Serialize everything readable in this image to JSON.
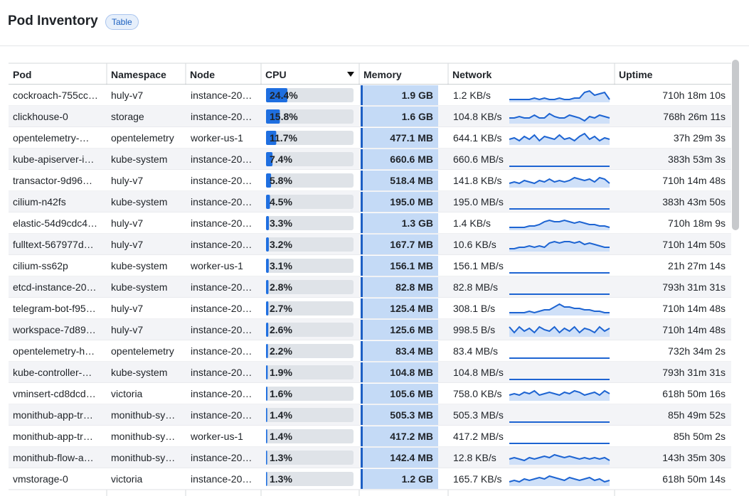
{
  "header": {
    "title": "Pod Inventory",
    "badge": "Table"
  },
  "table": {
    "columns": [
      "Pod",
      "Namespace",
      "Node",
      "CPU",
      "Memory",
      "Network",
      "Uptime"
    ],
    "rows": [
      {
        "pod": "cockroach-755cc…",
        "namespace": "huly-v7",
        "node": "instance-20…",
        "cpu": {
          "value": 24.4,
          "label": "24.4%"
        },
        "memory": "1.9 GB",
        "network": "1.2 KB/s",
        "uptime": "710h 18m 10s",
        "history": [
          2,
          2,
          2,
          2,
          2,
          3,
          2,
          3,
          2,
          2,
          3,
          2,
          2,
          3,
          3,
          7,
          8,
          5,
          6,
          7,
          2
        ]
      },
      {
        "pod": "clickhouse-0",
        "namespace": "storage",
        "node": "instance-20…",
        "cpu": {
          "value": 15.8,
          "label": "15.8%"
        },
        "memory": "1.6 GB",
        "network": "104.8 KB/s",
        "uptime": "768h 26m 11s",
        "history": [
          4,
          4,
          5,
          4,
          4,
          6,
          4,
          4,
          7,
          5,
          4,
          4,
          6,
          5,
          4,
          2,
          5,
          4,
          6,
          5,
          4
        ]
      },
      {
        "pod": "opentelemetry-…",
        "namespace": "opentelemetry",
        "node": "worker-us-1",
        "cpu": {
          "value": 11.7,
          "label": "11.7%"
        },
        "memory": "477.1 MB",
        "network": "644.1 KB/s",
        "uptime": "37h 29m 3s",
        "history": [
          4,
          5,
          3,
          6,
          4,
          7,
          3,
          6,
          5,
          4,
          7,
          4,
          5,
          3,
          6,
          8,
          4,
          6,
          3,
          5,
          4
        ]
      },
      {
        "pod": "kube-apiserver-i…",
        "namespace": "kube-system",
        "node": "instance-20…",
        "cpu": {
          "value": 7.4,
          "label": "7.4%"
        },
        "memory": "660.6 MB",
        "network": "660.6 MB/s",
        "uptime": "383h 53m 3s",
        "history": [
          0,
          0,
          0,
          0,
          0,
          0,
          0,
          0,
          0,
          0,
          0,
          0,
          0,
          0,
          0,
          0,
          0,
          0,
          0,
          0,
          0
        ]
      },
      {
        "pod": "transactor-9d96…",
        "namespace": "huly-v7",
        "node": "instance-20…",
        "cpu": {
          "value": 5.8,
          "label": "5.8%"
        },
        "memory": "518.4 MB",
        "network": "141.8 KB/s",
        "uptime": "710h 14m 48s",
        "history": [
          3,
          4,
          3,
          5,
          4,
          3,
          5,
          4,
          6,
          4,
          5,
          4,
          5,
          7,
          6,
          5,
          6,
          4,
          7,
          6,
          3
        ]
      },
      {
        "pod": "cilium-n42fs",
        "namespace": "kube-system",
        "node": "instance-20…",
        "cpu": {
          "value": 4.5,
          "label": "4.5%"
        },
        "memory": "195.0 MB",
        "network": "195.0 MB/s",
        "uptime": "383h 43m 50s",
        "history": [
          0,
          0,
          0,
          0,
          0,
          0,
          0,
          0,
          0,
          0,
          0,
          0,
          0,
          0,
          0,
          0,
          0,
          0,
          0,
          0,
          0
        ]
      },
      {
        "pod": "elastic-54d9cdc4…",
        "namespace": "huly-v7",
        "node": "instance-20…",
        "cpu": {
          "value": 3.3,
          "label": "3.3%"
        },
        "memory": "1.3 GB",
        "network": "1.4 KB/s",
        "uptime": "710h 18m 9s",
        "history": [
          2,
          2,
          2,
          2,
          3,
          3,
          4,
          6,
          7,
          6,
          6,
          7,
          6,
          5,
          6,
          5,
          4,
          4,
          3,
          3,
          2
        ]
      },
      {
        "pod": "fulltext-567977d…",
        "namespace": "huly-v7",
        "node": "instance-20…",
        "cpu": {
          "value": 3.2,
          "label": "3.2%"
        },
        "memory": "167.7 MB",
        "network": "10.6 KB/s",
        "uptime": "710h 14m 50s",
        "history": [
          2,
          2,
          3,
          3,
          4,
          3,
          4,
          3,
          6,
          7,
          6,
          7,
          7,
          6,
          7,
          5,
          6,
          5,
          4,
          3,
          3
        ]
      },
      {
        "pod": "cilium-ss62p",
        "namespace": "kube-system",
        "node": "worker-us-1",
        "cpu": {
          "value": 3.1,
          "label": "3.1%"
        },
        "memory": "156.1 MB",
        "network": "156.1 MB/s",
        "uptime": "21h 27m 14s",
        "history": [
          0,
          0,
          0,
          0,
          0,
          0,
          0,
          0,
          0,
          0,
          0,
          0,
          0,
          0,
          0,
          0,
          0,
          0,
          0,
          0,
          0
        ]
      },
      {
        "pod": "etcd-instance-20…",
        "namespace": "kube-system",
        "node": "instance-20…",
        "cpu": {
          "value": 2.8,
          "label": "2.8%"
        },
        "memory": "82.8 MB",
        "network": "82.8 MB/s",
        "uptime": "793h 31m 31s",
        "history": [
          0,
          0,
          0,
          0,
          0,
          0,
          0,
          0,
          0,
          0,
          0,
          0,
          0,
          0,
          0,
          0,
          0,
          0,
          0,
          0,
          0
        ]
      },
      {
        "pod": "telegram-bot-f95…",
        "namespace": "huly-v7",
        "node": "instance-20…",
        "cpu": {
          "value": 2.7,
          "label": "2.7%"
        },
        "memory": "125.4 MB",
        "network": "308.1 B/s",
        "uptime": "710h 14m 48s",
        "history": [
          2,
          2,
          2,
          2,
          3,
          2,
          3,
          4,
          4,
          6,
          8,
          6,
          6,
          5,
          5,
          4,
          4,
          3,
          3,
          2,
          2
        ]
      },
      {
        "pod": "workspace-7d89…",
        "namespace": "huly-v7",
        "node": "instance-20…",
        "cpu": {
          "value": 2.6,
          "label": "2.6%"
        },
        "memory": "125.6 MB",
        "network": "998.5 B/s",
        "uptime": "710h 14m 48s",
        "history": [
          7,
          3,
          7,
          4,
          6,
          3,
          7,
          5,
          4,
          7,
          3,
          6,
          4,
          7,
          3,
          6,
          5,
          3,
          7,
          4,
          6
        ]
      },
      {
        "pod": "opentelemetry-h…",
        "namespace": "opentelemetry",
        "node": "instance-20…",
        "cpu": {
          "value": 2.2,
          "label": "2.2%"
        },
        "memory": "83.4 MB",
        "network": "83.4 MB/s",
        "uptime": "732h 34m 2s",
        "history": [
          0,
          0,
          0,
          0,
          0,
          0,
          0,
          0,
          0,
          0,
          0,
          0,
          0,
          0,
          0,
          0,
          0,
          0,
          0,
          0,
          0
        ]
      },
      {
        "pod": "kube-controller-…",
        "namespace": "kube-system",
        "node": "instance-20…",
        "cpu": {
          "value": 1.9,
          "label": "1.9%"
        },
        "memory": "104.8 MB",
        "network": "104.8 MB/s",
        "uptime": "793h 31m 31s",
        "history": [
          0,
          0,
          0,
          0,
          0,
          0,
          0,
          0,
          0,
          0,
          0,
          0,
          0,
          0,
          0,
          0,
          0,
          0,
          0,
          0,
          0
        ]
      },
      {
        "pod": "vminsert-cd8dcd…",
        "namespace": "victoria",
        "node": "instance-20…",
        "cpu": {
          "value": 1.6,
          "label": "1.6%"
        },
        "memory": "105.6 MB",
        "network": "758.0 KB/s",
        "uptime": "618h 50m 16s",
        "history": [
          4,
          5,
          4,
          6,
          5,
          7,
          4,
          5,
          6,
          5,
          4,
          6,
          5,
          7,
          6,
          4,
          5,
          6,
          4,
          7,
          5
        ]
      },
      {
        "pod": "monithub-app-tr…",
        "namespace": "monithub-sy…",
        "node": "instance-20…",
        "cpu": {
          "value": 1.4,
          "label": "1.4%"
        },
        "memory": "505.3 MB",
        "network": "505.3 MB/s",
        "uptime": "85h 49m 52s",
        "history": [
          0,
          0,
          0,
          0,
          0,
          0,
          0,
          0,
          0,
          0,
          0,
          0,
          0,
          0,
          0,
          0,
          0,
          0,
          0,
          0,
          0
        ]
      },
      {
        "pod": "monithub-app-tr…",
        "namespace": "monithub-sy…",
        "node": "worker-us-1",
        "cpu": {
          "value": 1.4,
          "label": "1.4%"
        },
        "memory": "417.2 MB",
        "network": "417.2 MB/s",
        "uptime": "85h 50m 2s",
        "history": [
          0,
          0,
          0,
          0,
          0,
          0,
          0,
          0,
          0,
          0,
          0,
          0,
          0,
          0,
          0,
          0,
          0,
          0,
          0,
          0,
          0
        ]
      },
      {
        "pod": "monithub-flow-a…",
        "namespace": "monithub-sy…",
        "node": "instance-20…",
        "cpu": {
          "value": 1.3,
          "label": "1.3%"
        },
        "memory": "142.4 MB",
        "network": "12.8 KB/s",
        "uptime": "143h 35m 30s",
        "history": [
          4,
          5,
          4,
          3,
          5,
          4,
          5,
          6,
          5,
          7,
          6,
          5,
          6,
          5,
          4,
          5,
          4,
          5,
          4,
          5,
          3
        ]
      },
      {
        "pod": "vmstorage-0",
        "namespace": "victoria",
        "node": "instance-20…",
        "cpu": {
          "value": 1.3,
          "label": "1.3%"
        },
        "memory": "1.2 GB",
        "network": "165.7 KB/s",
        "uptime": "618h 50m 14s",
        "history": [
          3,
          4,
          3,
          5,
          4,
          5,
          6,
          5,
          7,
          6,
          5,
          4,
          6,
          5,
          4,
          5,
          6,
          4,
          5,
          3,
          4
        ]
      }
    ]
  }
}
